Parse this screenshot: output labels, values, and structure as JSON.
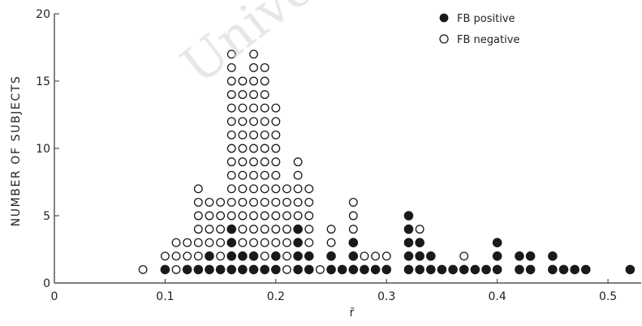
{
  "chart_data": {
    "type": "scatter",
    "xlabel": "r̄",
    "ylabel": "NUMBER OF SUBJECTS",
    "xlim": [
      0,
      0.53
    ],
    "ylim": [
      0,
      20
    ],
    "x_ticks": [
      "0",
      "0.1",
      "0.2",
      "0.3",
      "0.4",
      "0.5"
    ],
    "y_ticks": [
      "0",
      "5",
      "10",
      "15",
      "20"
    ],
    "grid": false,
    "legend_position": "top-right",
    "series": [
      {
        "name": "FB positive",
        "marker": "filled-circle",
        "color": "#1a1a1a",
        "points": [
          {
            "x": 0.1,
            "y": 1
          },
          {
            "x": 0.12,
            "y": 1
          },
          {
            "x": 0.13,
            "y": 1
          },
          {
            "x": 0.14,
            "y": 1
          },
          {
            "x": 0.14,
            "y": 2
          },
          {
            "x": 0.15,
            "y": 1
          },
          {
            "x": 0.16,
            "y": 1
          },
          {
            "x": 0.16,
            "y": 2
          },
          {
            "x": 0.16,
            "y": 3
          },
          {
            "x": 0.16,
            "y": 4
          },
          {
            "x": 0.17,
            "y": 1
          },
          {
            "x": 0.17,
            "y": 2
          },
          {
            "x": 0.18,
            "y": 1
          },
          {
            "x": 0.18,
            "y": 2
          },
          {
            "x": 0.19,
            "y": 1
          },
          {
            "x": 0.2,
            "y": 1
          },
          {
            "x": 0.2,
            "y": 2
          },
          {
            "x": 0.22,
            "y": 1
          },
          {
            "x": 0.22,
            "y": 2
          },
          {
            "x": 0.22,
            "y": 3
          },
          {
            "x": 0.22,
            "y": 4
          },
          {
            "x": 0.23,
            "y": 1
          },
          {
            "x": 0.23,
            "y": 2
          },
          {
            "x": 0.25,
            "y": 1
          },
          {
            "x": 0.25,
            "y": 2
          },
          {
            "x": 0.26,
            "y": 1
          },
          {
            "x": 0.27,
            "y": 1
          },
          {
            "x": 0.27,
            "y": 2
          },
          {
            "x": 0.27,
            "y": 3
          },
          {
            "x": 0.28,
            "y": 1
          },
          {
            "x": 0.29,
            "y": 1
          },
          {
            "x": 0.3,
            "y": 1
          },
          {
            "x": 0.32,
            "y": 1
          },
          {
            "x": 0.32,
            "y": 2
          },
          {
            "x": 0.32,
            "y": 3
          },
          {
            "x": 0.32,
            "y": 4
          },
          {
            "x": 0.32,
            "y": 5
          },
          {
            "x": 0.33,
            "y": 1
          },
          {
            "x": 0.33,
            "y": 2
          },
          {
            "x": 0.33,
            "y": 3
          },
          {
            "x": 0.34,
            "y": 1
          },
          {
            "x": 0.34,
            "y": 2
          },
          {
            "x": 0.35,
            "y": 1
          },
          {
            "x": 0.36,
            "y": 1
          },
          {
            "x": 0.37,
            "y": 1
          },
          {
            "x": 0.38,
            "y": 1
          },
          {
            "x": 0.39,
            "y": 1
          },
          {
            "x": 0.4,
            "y": 1
          },
          {
            "x": 0.4,
            "y": 2
          },
          {
            "x": 0.4,
            "y": 3
          },
          {
            "x": 0.42,
            "y": 1
          },
          {
            "x": 0.42,
            "y": 2
          },
          {
            "x": 0.43,
            "y": 1
          },
          {
            "x": 0.43,
            "y": 2
          },
          {
            "x": 0.45,
            "y": 1
          },
          {
            "x": 0.45,
            "y": 2
          },
          {
            "x": 0.46,
            "y": 1
          },
          {
            "x": 0.47,
            "y": 1
          },
          {
            "x": 0.48,
            "y": 1
          },
          {
            "x": 0.52,
            "y": 1
          }
        ]
      },
      {
        "name": "FB negative",
        "marker": "open-circle",
        "color": "#1a1a1a",
        "points": [
          {
            "x": 0.08,
            "y": 1
          },
          {
            "x": 0.1,
            "y": 2
          },
          {
            "x": 0.11,
            "y": 1
          },
          {
            "x": 0.11,
            "y": 2
          },
          {
            "x": 0.11,
            "y": 3
          },
          {
            "x": 0.12,
            "y": 2
          },
          {
            "x": 0.12,
            "y": 3
          },
          {
            "x": 0.13,
            "y": 2
          },
          {
            "x": 0.13,
            "y": 3
          },
          {
            "x": 0.13,
            "y": 4
          },
          {
            "x": 0.13,
            "y": 5
          },
          {
            "x": 0.13,
            "y": 6
          },
          {
            "x": 0.13,
            "y": 7
          },
          {
            "x": 0.14,
            "y": 3
          },
          {
            "x": 0.14,
            "y": 4
          },
          {
            "x": 0.14,
            "y": 5
          },
          {
            "x": 0.14,
            "y": 6
          },
          {
            "x": 0.15,
            "y": 2
          },
          {
            "x": 0.15,
            "y": 3
          },
          {
            "x": 0.15,
            "y": 4
          },
          {
            "x": 0.15,
            "y": 5
          },
          {
            "x": 0.15,
            "y": 6
          },
          {
            "x": 0.16,
            "y": 5
          },
          {
            "x": 0.16,
            "y": 6
          },
          {
            "x": 0.16,
            "y": 7
          },
          {
            "x": 0.16,
            "y": 8
          },
          {
            "x": 0.16,
            "y": 9
          },
          {
            "x": 0.16,
            "y": 10
          },
          {
            "x": 0.16,
            "y": 11
          },
          {
            "x": 0.16,
            "y": 12
          },
          {
            "x": 0.16,
            "y": 13
          },
          {
            "x": 0.16,
            "y": 14
          },
          {
            "x": 0.16,
            "y": 15
          },
          {
            "x": 0.16,
            "y": 16
          },
          {
            "x": 0.16,
            "y": 17
          },
          {
            "x": 0.17,
            "y": 3
          },
          {
            "x": 0.17,
            "y": 4
          },
          {
            "x": 0.17,
            "y": 5
          },
          {
            "x": 0.17,
            "y": 6
          },
          {
            "x": 0.17,
            "y": 7
          },
          {
            "x": 0.17,
            "y": 8
          },
          {
            "x": 0.17,
            "y": 9
          },
          {
            "x": 0.17,
            "y": 10
          },
          {
            "x": 0.17,
            "y": 11
          },
          {
            "x": 0.17,
            "y": 12
          },
          {
            "x": 0.17,
            "y": 13
          },
          {
            "x": 0.17,
            "y": 14
          },
          {
            "x": 0.17,
            "y": 15
          },
          {
            "x": 0.18,
            "y": 3
          },
          {
            "x": 0.18,
            "y": 4
          },
          {
            "x": 0.18,
            "y": 5
          },
          {
            "x": 0.18,
            "y": 6
          },
          {
            "x": 0.18,
            "y": 7
          },
          {
            "x": 0.18,
            "y": 8
          },
          {
            "x": 0.18,
            "y": 9
          },
          {
            "x": 0.18,
            "y": 10
          },
          {
            "x": 0.18,
            "y": 11
          },
          {
            "x": 0.18,
            "y": 12
          },
          {
            "x": 0.18,
            "y": 13
          },
          {
            "x": 0.18,
            "y": 14
          },
          {
            "x": 0.18,
            "y": 15
          },
          {
            "x": 0.18,
            "y": 16
          },
          {
            "x": 0.18,
            "y": 17
          },
          {
            "x": 0.19,
            "y": 2
          },
          {
            "x": 0.19,
            "y": 3
          },
          {
            "x": 0.19,
            "y": 4
          },
          {
            "x": 0.19,
            "y": 5
          },
          {
            "x": 0.19,
            "y": 6
          },
          {
            "x": 0.19,
            "y": 7
          },
          {
            "x": 0.19,
            "y": 8
          },
          {
            "x": 0.19,
            "y": 9
          },
          {
            "x": 0.19,
            "y": 10
          },
          {
            "x": 0.19,
            "y": 11
          },
          {
            "x": 0.19,
            "y": 12
          },
          {
            "x": 0.19,
            "y": 13
          },
          {
            "x": 0.19,
            "y": 14
          },
          {
            "x": 0.19,
            "y": 15
          },
          {
            "x": 0.19,
            "y": 16
          },
          {
            "x": 0.2,
            "y": 3
          },
          {
            "x": 0.2,
            "y": 4
          },
          {
            "x": 0.2,
            "y": 5
          },
          {
            "x": 0.2,
            "y": 6
          },
          {
            "x": 0.2,
            "y": 7
          },
          {
            "x": 0.2,
            "y": 8
          },
          {
            "x": 0.2,
            "y": 9
          },
          {
            "x": 0.2,
            "y": 10
          },
          {
            "x": 0.2,
            "y": 11
          },
          {
            "x": 0.2,
            "y": 12
          },
          {
            "x": 0.2,
            "y": 13
          },
          {
            "x": 0.21,
            "y": 1
          },
          {
            "x": 0.21,
            "y": 2
          },
          {
            "x": 0.21,
            "y": 3
          },
          {
            "x": 0.21,
            "y": 4
          },
          {
            "x": 0.21,
            "y": 5
          },
          {
            "x": 0.21,
            "y": 6
          },
          {
            "x": 0.21,
            "y": 7
          },
          {
            "x": 0.22,
            "y": 5
          },
          {
            "x": 0.22,
            "y": 6
          },
          {
            "x": 0.22,
            "y": 7
          },
          {
            "x": 0.22,
            "y": 8
          },
          {
            "x": 0.22,
            "y": 9
          },
          {
            "x": 0.23,
            "y": 3
          },
          {
            "x": 0.23,
            "y": 4
          },
          {
            "x": 0.23,
            "y": 5
          },
          {
            "x": 0.23,
            "y": 6
          },
          {
            "x": 0.23,
            "y": 7
          },
          {
            "x": 0.24,
            "y": 1
          },
          {
            "x": 0.25,
            "y": 3
          },
          {
            "x": 0.25,
            "y": 4
          },
          {
            "x": 0.27,
            "y": 4
          },
          {
            "x": 0.27,
            "y": 5
          },
          {
            "x": 0.27,
            "y": 6
          },
          {
            "x": 0.28,
            "y": 2
          },
          {
            "x": 0.29,
            "y": 2
          },
          {
            "x": 0.3,
            "y": 2
          },
          {
            "x": 0.33,
            "y": 4
          },
          {
            "x": 0.37,
            "y": 2
          }
        ]
      }
    ]
  },
  "watermark": "University of Cape Town"
}
